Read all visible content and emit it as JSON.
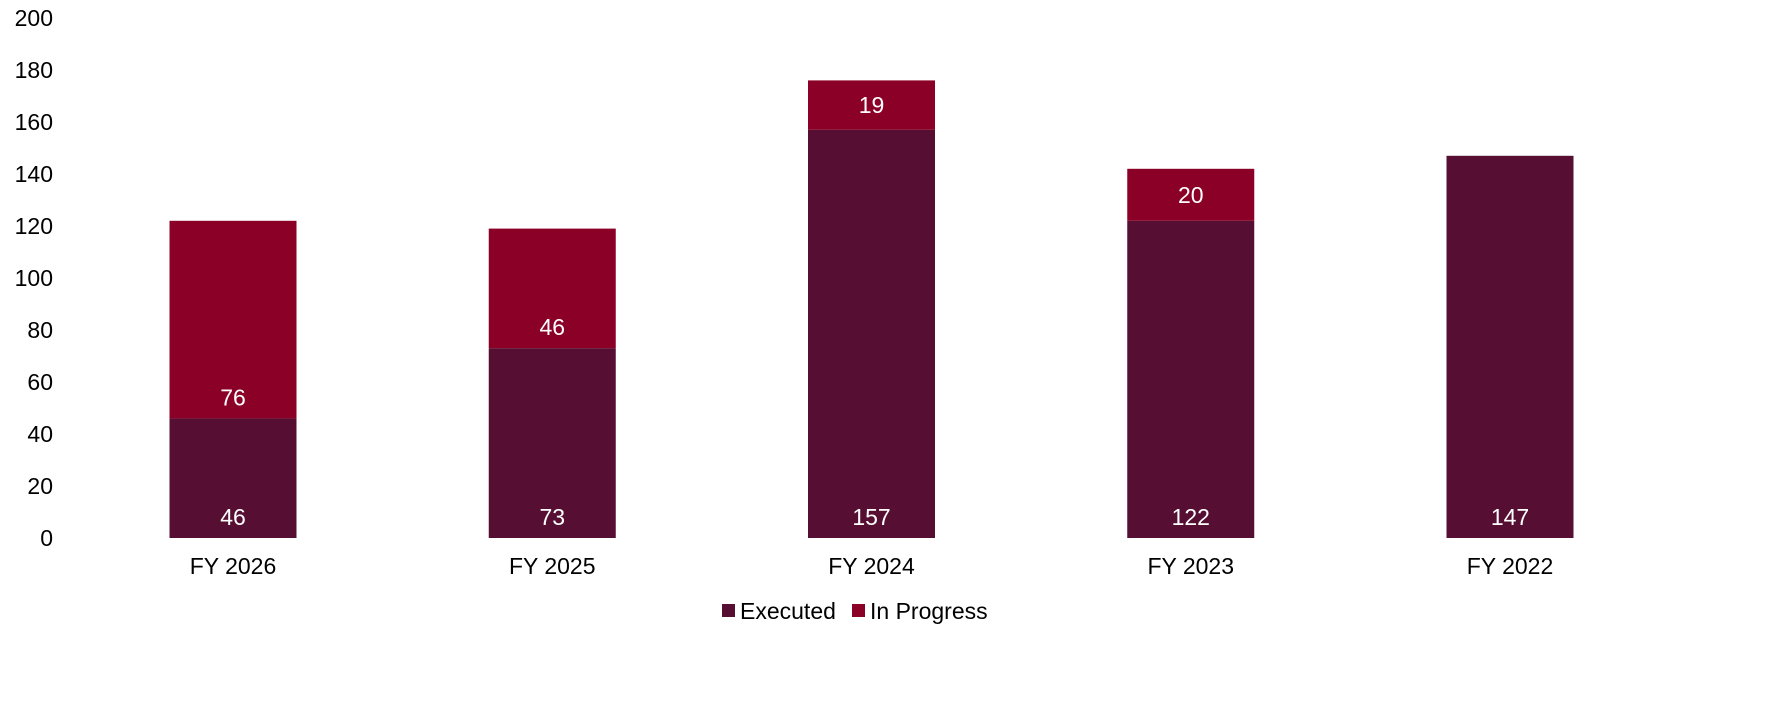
{
  "chart_data": {
    "type": "bar",
    "stacked": true,
    "categories": [
      "FY 2026",
      "FY 2025",
      "FY 2024",
      "FY 2023",
      "FY 2022"
    ],
    "series": [
      {
        "name": "Executed",
        "values": [
          46,
          73,
          157,
          122,
          147
        ],
        "color": "#560F33"
      },
      {
        "name": "In Progress",
        "values": [
          76,
          46,
          19,
          20,
          0
        ],
        "color": "#8B0026"
      }
    ],
    "ylim": [
      0,
      200
    ],
    "yticks": [
      0,
      20,
      40,
      60,
      80,
      100,
      120,
      140,
      160,
      180,
      200
    ],
    "grid": false,
    "legend": "bottom-center"
  }
}
